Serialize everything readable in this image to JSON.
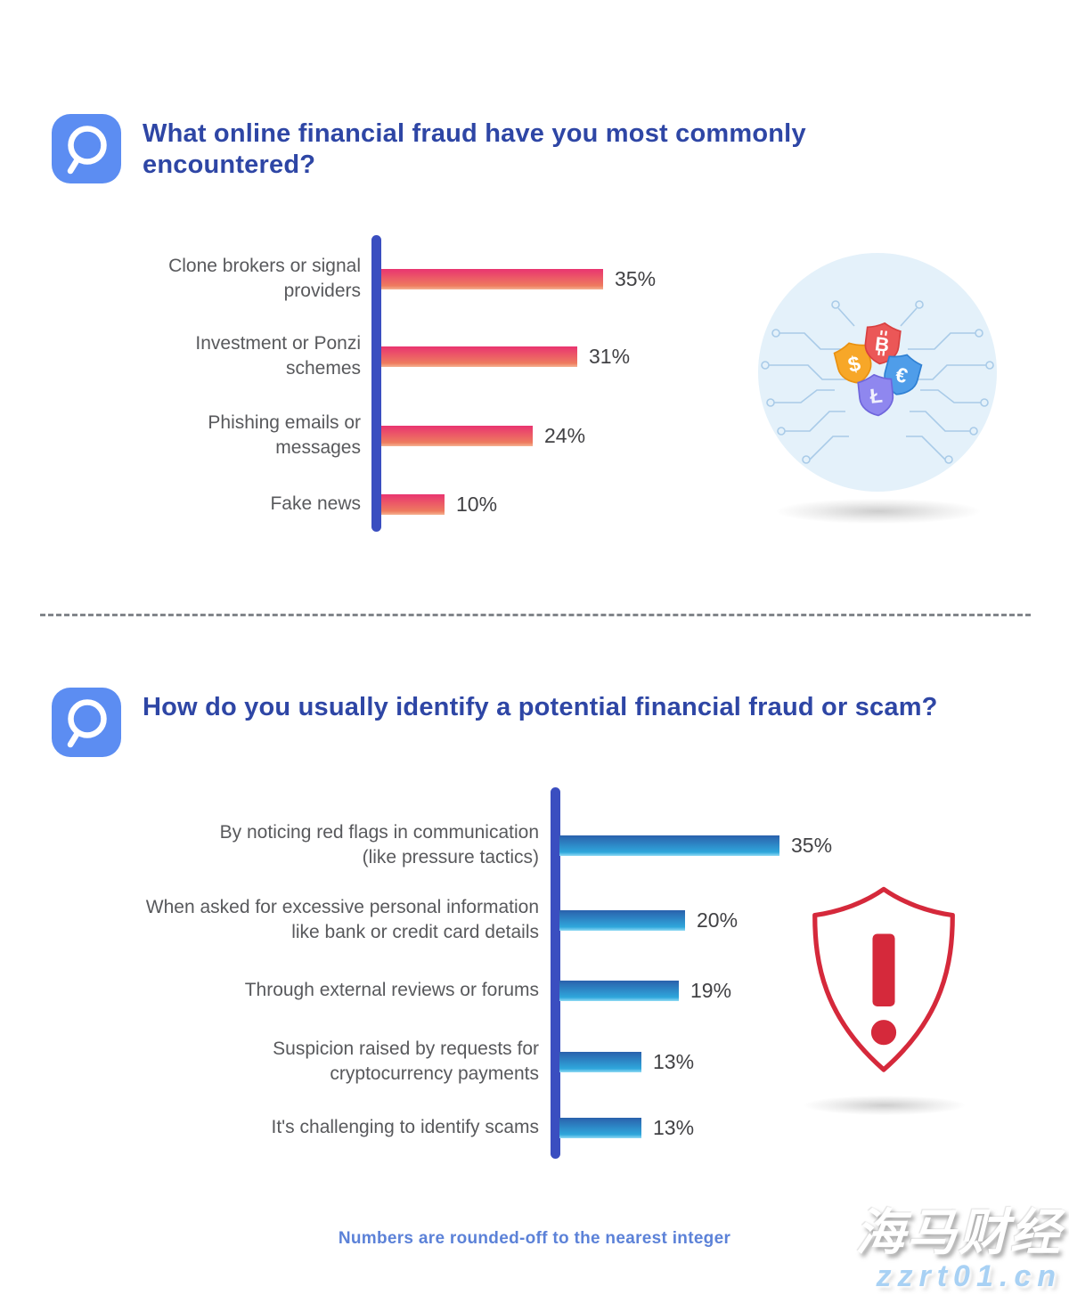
{
  "page": {
    "background": "#FFFFFF"
  },
  "colors": {
    "title_blue": "#2E46A5",
    "question_icon_blue": "#5C8DF2",
    "axis_blue": "#3A4EC0",
    "category_label_gray": "#58595C",
    "value_label_gray": "#414144",
    "footer_blue": "#5C82D8",
    "alert_red": "#D5293B",
    "illustration_circle_blue": "#E4F1FA",
    "circuit_line_blue": "#A9CBE8"
  },
  "sections": [
    {
      "question": "What online financial fraud have you most commonly encountered?",
      "illustration": "currency-shields-circuit"
    },
    {
      "question": "How do you usually identify a potential financial fraud or scam?",
      "illustration": "alert-exclamation-shield"
    }
  ],
  "chart_data": [
    {
      "type": "bar",
      "orientation": "horizontal",
      "title": "What online financial fraud have you most commonly encountered?",
      "categories": [
        "Clone brokers or signal providers",
        "Investment or Ponzi schemes",
        "Phishing emails or messages",
        "Fake news"
      ],
      "labels_display": [
        "Clone brokers or signal\nproviders",
        "Investment or Ponzi\nschemes",
        "Phishing emails or\nmessages",
        "Fake news"
      ],
      "values": [
        35,
        31,
        24,
        10
      ],
      "value_labels": [
        "35%",
        "31%",
        "24%",
        "10%"
      ],
      "unit": "%",
      "xlim": [
        0,
        40
      ],
      "grid": false,
      "legend": false,
      "bar_gradient": [
        "#E93470",
        "#EE7B5F",
        "#F5B392"
      ],
      "axis_color": "#3A4EC0"
    },
    {
      "type": "bar",
      "orientation": "horizontal",
      "title": "How do you usually identify a potential financial fraud or scam?",
      "categories": [
        "By noticing red flags in communication (like pressure tactics)",
        "When asked for excessive personal information like bank or credit card details",
        "Through external reviews or forums",
        "Suspicion raised by requests for cryptocurrency payments",
        "It's challenging to identify scams"
      ],
      "labels_display": [
        "By noticing red flags in communication\n(like pressure tactics)",
        "When asked for excessive personal information\nlike bank or credit card details",
        "Through external reviews or forums",
        "Suspicion raised by requests for\ncryptocurrency payments",
        "It's challenging to identify scams"
      ],
      "values": [
        35,
        20,
        19,
        13,
        13
      ],
      "value_labels": [
        "35%",
        "20%",
        "19%",
        "13%",
        "13%"
      ],
      "unit": "%",
      "xlim": [
        0,
        40
      ],
      "grid": false,
      "legend": false,
      "bar_gradient": [
        "#2A61AC",
        "#2FA7DC",
        "#90DAF4"
      ],
      "axis_color": "#3A4EC0"
    }
  ],
  "footer": {
    "note": "Numbers are rounded-off to the nearest integer"
  },
  "watermark": {
    "line1": "海马财经",
    "line2": "zzrt01.cn"
  },
  "icons": {
    "question_icon": "magnifying-glass-q",
    "currency_shield_glyphs": [
      "$",
      "B",
      "€",
      "Ł"
    ],
    "alert_icon": "exclamation-shield"
  }
}
